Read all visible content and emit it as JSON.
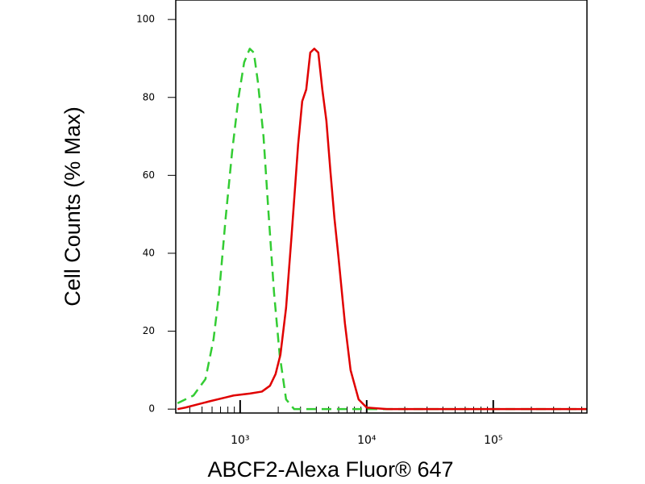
{
  "chart_data": {
    "type": "line",
    "x_label": "ABCF2-Alexa Fluor® 647",
    "y_label": "Cell Counts (% Max)",
    "log_x": true,
    "xlim": [
      310,
      550000
    ],
    "ylim": [
      -1,
      105
    ],
    "xticks": [
      {
        "value": 1000,
        "label": "10³"
      },
      {
        "value": 10000,
        "label": "10⁴"
      },
      {
        "value": 100000,
        "label": "10⁵"
      }
    ],
    "minor_xticks": [
      400,
      500,
      600,
      700,
      800,
      900,
      2000,
      3000,
      4000,
      5000,
      6000,
      7000,
      8000,
      9000,
      20000,
      30000,
      40000,
      50000,
      60000,
      70000,
      80000,
      90000,
      200000,
      300000,
      400000,
      500000
    ],
    "yticks": [
      0,
      20,
      40,
      60,
      80,
      100
    ],
    "series": [
      {
        "color": "#33cc33",
        "dashed": true,
        "x": [
          320,
          428,
          532,
          617,
          683,
          768,
          864,
          971,
          1076,
          1192,
          1283,
          1381,
          1530,
          1671,
          1852,
          2052,
          2307,
          2672,
          9290,
          83800,
          550000
        ],
        "values": [
          1.5,
          3.5,
          7.7,
          18,
          30,
          49,
          66,
          80,
          89,
          92.5,
          91.5,
          84,
          70,
          51,
          30,
          14,
          2.5,
          0,
          0,
          0,
          0
        ]
      },
      {
        "color": "#e00000",
        "dashed": false,
        "x": [
          320,
          369,
          573,
          768,
          889,
          1192,
          1486,
          1721,
          1906,
          2082,
          2307,
          2556,
          2874,
          3093,
          3328,
          3582,
          3854,
          4147,
          4463,
          4804,
          5169,
          5561,
          5985,
          6729,
          7460,
          8632,
          10000,
          14420,
          83800,
          550000
        ],
        "values": [
          0,
          0.4,
          2,
          3,
          3.5,
          4,
          4.5,
          6,
          9,
          14,
          26,
          45,
          68,
          79,
          82,
          91.5,
          92.5,
          91.5,
          82,
          74,
          61,
          49,
          39,
          22,
          10,
          2.5,
          0.4,
          0,
          0,
          0
        ]
      }
    ]
  }
}
